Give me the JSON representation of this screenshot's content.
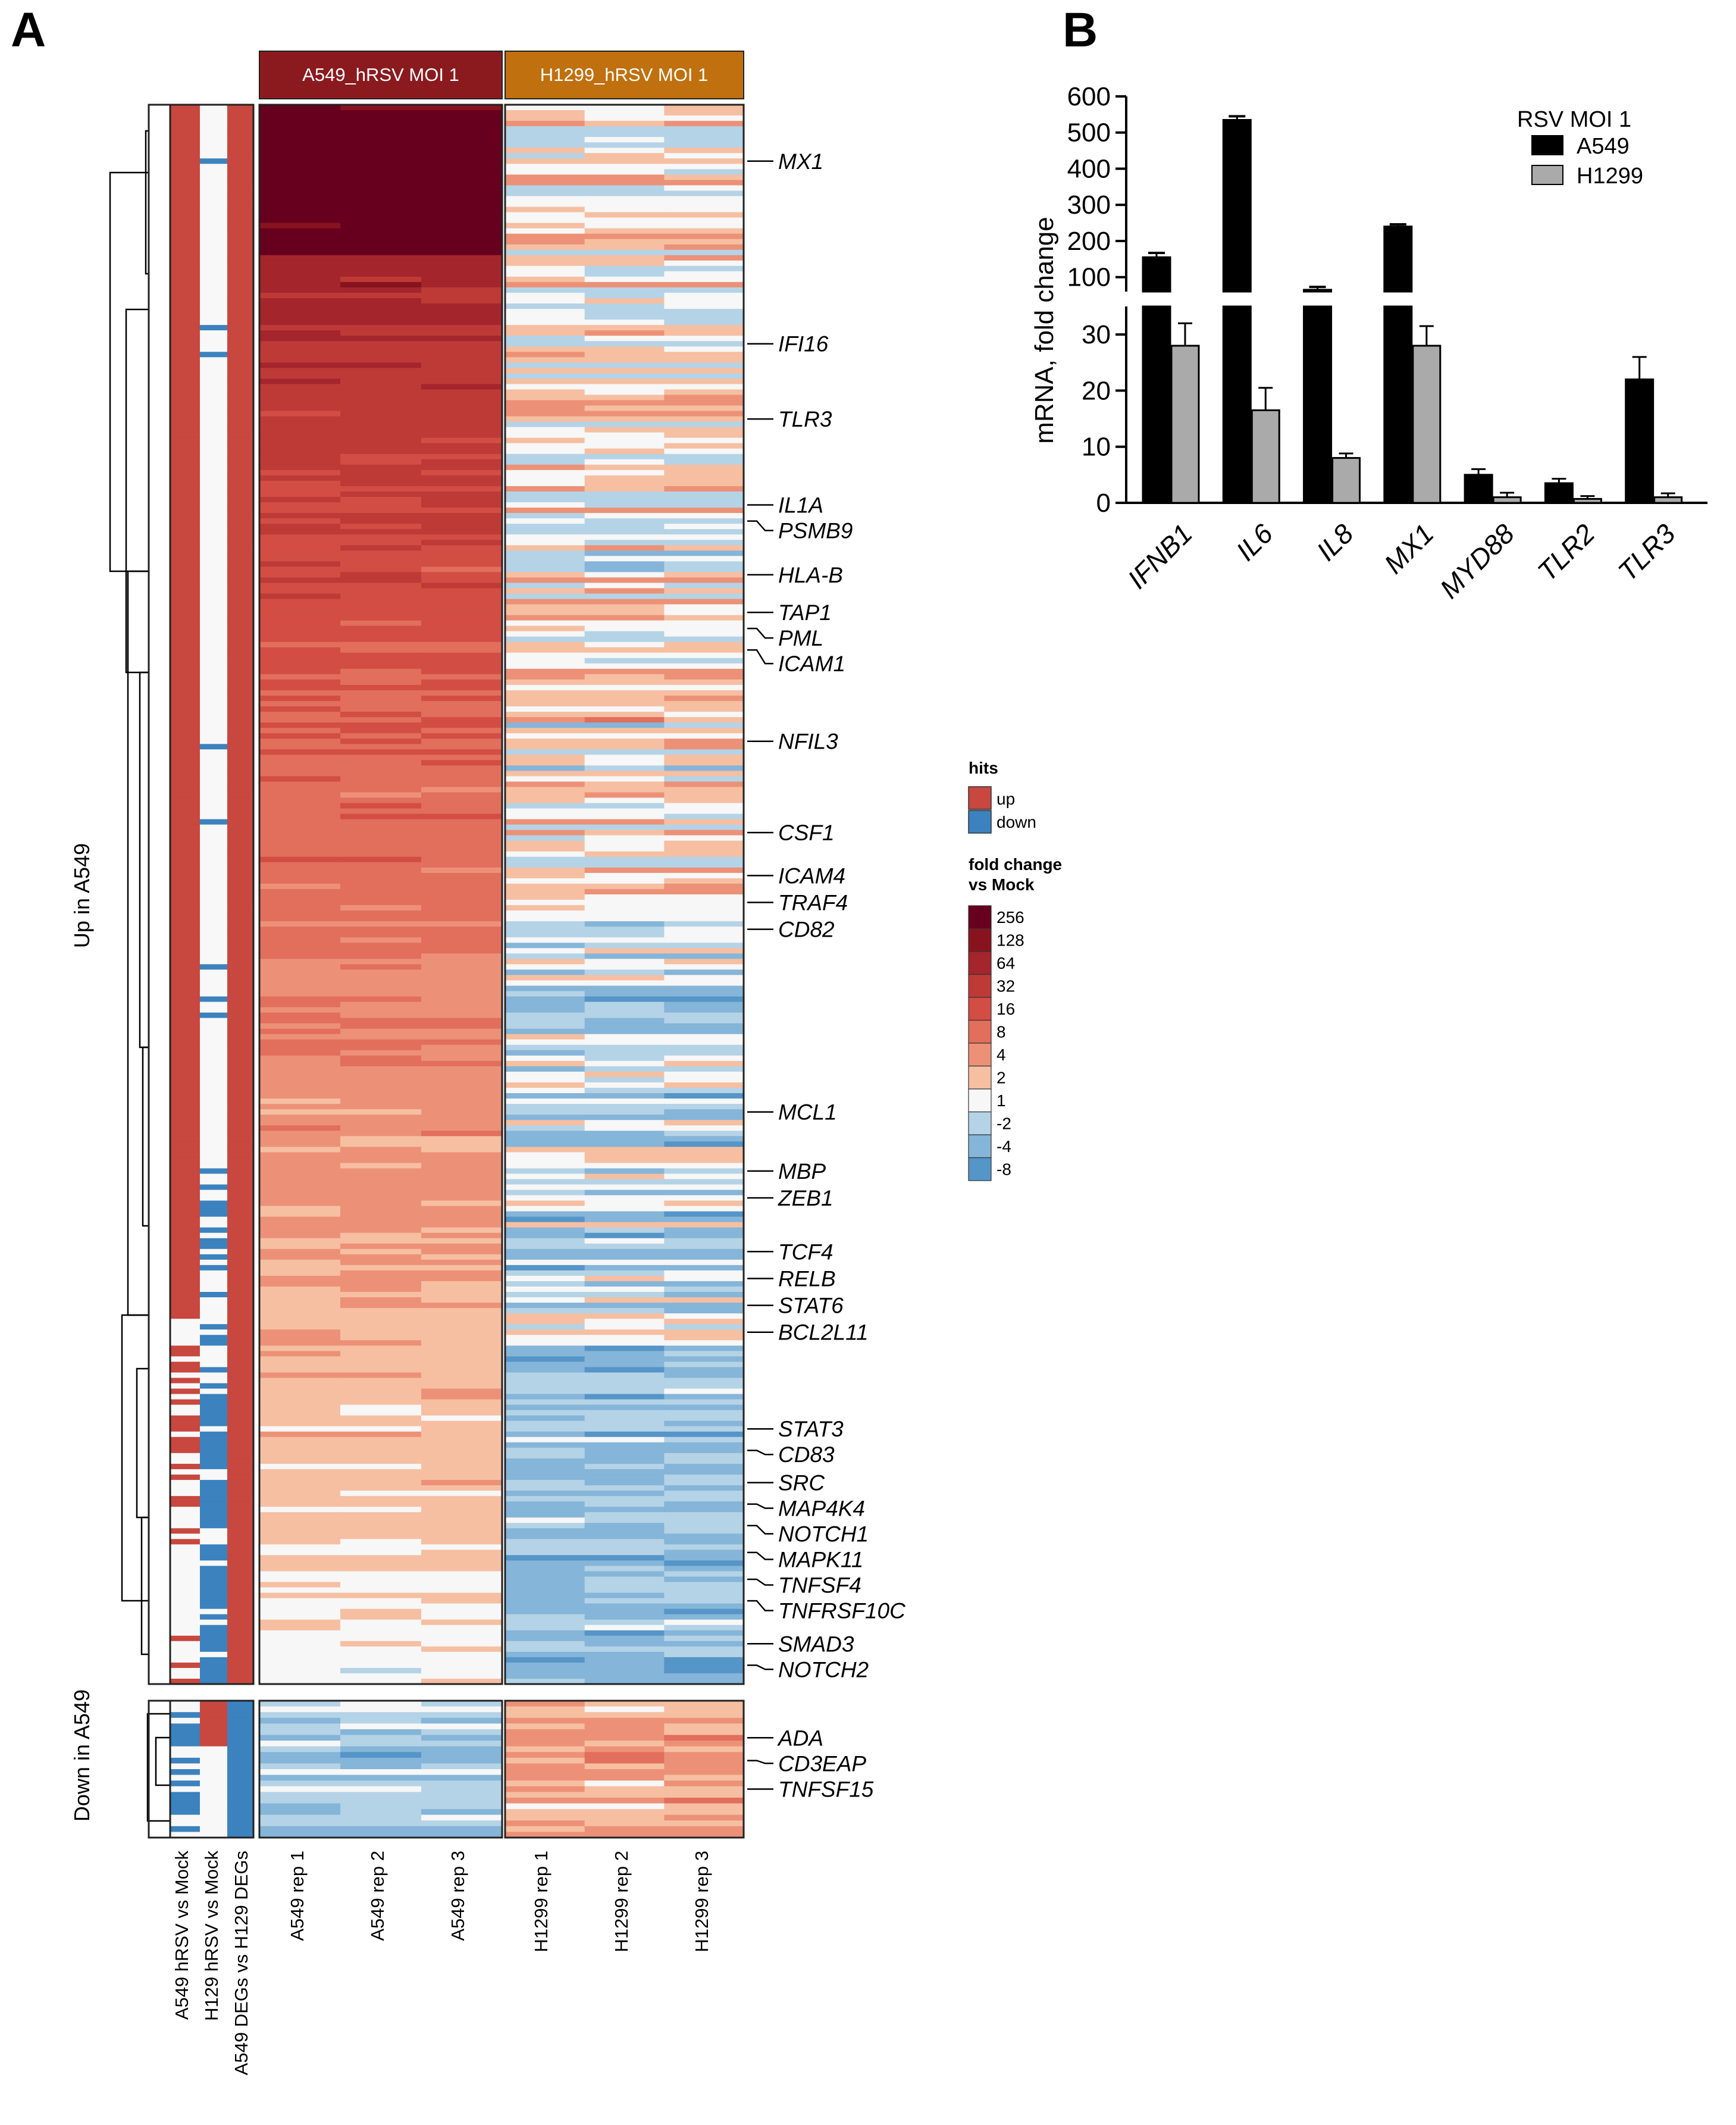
{
  "panels": {
    "a_letter": "A",
    "b_letter": "B"
  },
  "heatmap": {
    "group_headers": [
      {
        "label": "A549_hRSV MOI 1",
        "color": "#8b1a1f"
      },
      {
        "label": "H1299_hRSV MOI 1",
        "color": "#c0700e"
      }
    ],
    "row_groups": [
      "Up in A549",
      "Down in A549"
    ],
    "annotation_columns": [
      "A549 hRSV vs Mock",
      "H129 hRSV vs Mock",
      "A549 DEGs vs H129 DEGs"
    ],
    "sample_columns": [
      "A549 rep 1",
      "A549 rep 2",
      "A549 rep 3",
      "H1299 rep 1",
      "H1299 rep 2",
      "H1299 rep 3"
    ],
    "gene_labels": [
      {
        "gene": "MX1",
        "row": 10
      },
      {
        "gene": "IFI16",
        "row": 44
      },
      {
        "gene": "TLR3",
        "row": 58
      },
      {
        "gene": "IL1A",
        "row": 74
      },
      {
        "gene": "PSMB9",
        "row": 77
      },
      {
        "gene": "HLA-B",
        "row": 87
      },
      {
        "gene": "TAP1",
        "row": 94
      },
      {
        "gene": "PML",
        "row": 97
      },
      {
        "gene": "ICAM1",
        "row": 101
      },
      {
        "gene": "NFIL3",
        "row": 118
      },
      {
        "gene": "CSF1",
        "row": 135
      },
      {
        "gene": "ICAM4",
        "row": 143
      },
      {
        "gene": "TRAF4",
        "row": 148
      },
      {
        "gene": "CD82",
        "row": 153
      },
      {
        "gene": "MCL1",
        "row": 187
      },
      {
        "gene": "MBP",
        "row": 198
      },
      {
        "gene": "ZEB1",
        "row": 203
      },
      {
        "gene": "TCF4",
        "row": 213
      },
      {
        "gene": "RELB",
        "row": 218
      },
      {
        "gene": "STAT6",
        "row": 223
      },
      {
        "gene": "BCL2L11",
        "row": 228
      },
      {
        "gene": "STAT3",
        "row": 246
      },
      {
        "gene": "CD83",
        "row": 250
      },
      {
        "gene": "SRC",
        "row": 256
      },
      {
        "gene": "MAP4K4",
        "row": 260
      },
      {
        "gene": "NOTCH1",
        "row": 264
      },
      {
        "gene": "MAPK11",
        "row": 269
      },
      {
        "gene": "TNFSF4",
        "row": 274
      },
      {
        "gene": "TNFRSF10C",
        "row": 278
      },
      {
        "gene": "SMAD3",
        "row": 286
      },
      {
        "gene": "NOTCH2",
        "row": 290
      },
      {
        "gene": "ADA",
        "row": 300
      },
      {
        "gene": "CD3EAP",
        "row": 304
      },
      {
        "gene": "TNFSF15",
        "row": 309
      }
    ],
    "legend_hits": {
      "title": "hits",
      "items": [
        {
          "label": "up",
          "color": "#c8473f"
        },
        {
          "label": "down",
          "color": "#3b82be"
        }
      ]
    },
    "legend_fc": {
      "title_line1": "fold change",
      "title_line2": "vs Mock",
      "items": [
        {
          "label": "256",
          "color": "#67001f"
        },
        {
          "label": "128",
          "color": "#88131f"
        },
        {
          "label": "64",
          "color": "#a4252c"
        },
        {
          "label": "32",
          "color": "#bd3a36"
        },
        {
          "label": "16",
          "color": "#d24d44"
        },
        {
          "label": "8",
          "color": "#e26e5c"
        },
        {
          "label": "4",
          "color": "#ec9177"
        },
        {
          "label": "2",
          "color": "#f6bfa2"
        },
        {
          "label": "1",
          "color": "#f7f7f7"
        },
        {
          "label": "-2",
          "color": "#b5d3e6"
        },
        {
          "label": "-4",
          "color": "#85b5d8"
        },
        {
          "label": "-8",
          "color": "#5595c8"
        }
      ]
    }
  },
  "chart_data": {
    "type": "bar",
    "title": "",
    "xlabel": "",
    "ylabel": "mRNA, fold change",
    "categories": [
      "IFNB1",
      "IL6",
      "IL8",
      "MX1",
      "MYD88",
      "TLR2",
      "TLR3"
    ],
    "series": [
      {
        "name": "A549",
        "color": "#000000",
        "values": [
          155,
          535,
          65,
          240,
          5,
          3.5,
          22
        ],
        "errors": [
          12,
          10,
          8,
          6,
          1,
          0.8,
          4
        ]
      },
      {
        "name": "H1299",
        "color": "#aaaaaa",
        "values": [
          28,
          16.5,
          8,
          28,
          1,
          0.7,
          1
        ],
        "errors": [
          4,
          4,
          0.8,
          3.5,
          0.8,
          0.5,
          0.7
        ]
      }
    ],
    "axis_break": {
      "lower_range": [
        0,
        35
      ],
      "upper_range": [
        60,
        600
      ]
    },
    "y_ticks_lower": [
      "0",
      "10",
      "20",
      "30"
    ],
    "y_ticks_upper": [
      "100",
      "200",
      "300",
      "400",
      "500",
      "600"
    ],
    "legend_title": "RSV MOI 1",
    "legend_position": "top-right"
  }
}
